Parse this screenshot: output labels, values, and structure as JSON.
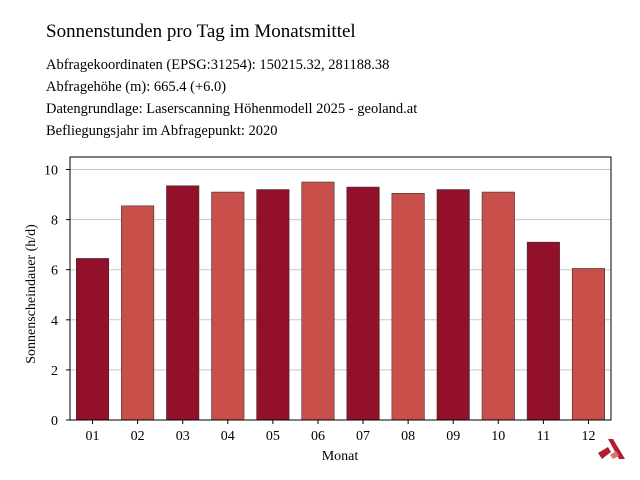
{
  "title": "Sonnenstunden pro Tag im Monatsmittel",
  "info": [
    "Abfragekoordinaten (EPSG:31254): 150215.32, 281188.38",
    "Abfragehöhe (m): 665.4 (+6.0)",
    "Datengrundlage: Laserscanning Höhenmodell 2025 - geoland.at",
    "Befliegungsjahr im Abfragepunkt: 2020"
  ],
  "chart_data": {
    "type": "bar",
    "xlabel": "Monat",
    "ylabel": "Sonnenscheindauer (h/d)",
    "categories": [
      "01",
      "02",
      "03",
      "04",
      "05",
      "06",
      "07",
      "08",
      "09",
      "10",
      "11",
      "12"
    ],
    "values": [
      6.45,
      8.55,
      9.35,
      9.1,
      9.2,
      9.5,
      9.3,
      9.05,
      9.2,
      9.1,
      7.1,
      6.05
    ],
    "ylim": [
      0,
      10.5
    ],
    "yticks": [
      0,
      2,
      4,
      6,
      8,
      10
    ],
    "grid": true,
    "colors": [
      "#93102b",
      "#c9504a"
    ]
  },
  "logo_icon": "geo-logo-icon"
}
